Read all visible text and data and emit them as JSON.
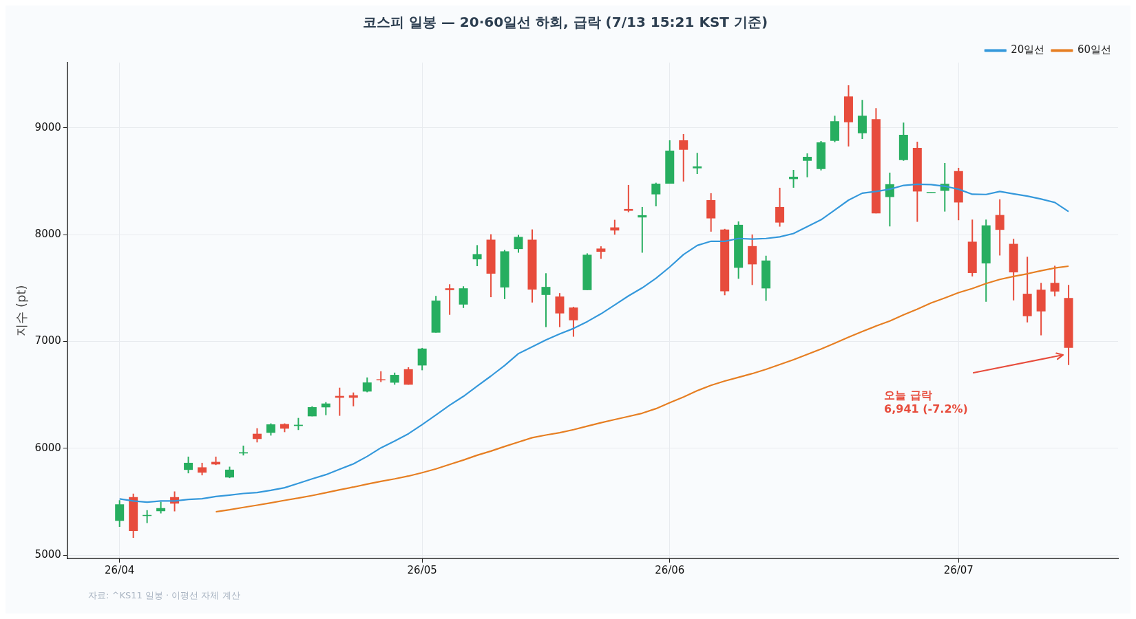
{
  "chart_data": {
    "type": "candlestick",
    "title": "코스피 일봉 — 20·60일선 하회, 급락 (7/13 15:21 KST 기준)",
    "ylabel": "지수 (pt)",
    "categories": [
      "26/04",
      null,
      null,
      null,
      null,
      null,
      null,
      null,
      null,
      null,
      null,
      null,
      null,
      null,
      null,
      null,
      null,
      null,
      null,
      null,
      null,
      null,
      "26/05",
      null,
      null,
      null,
      null,
      null,
      null,
      null,
      null,
      null,
      null,
      null,
      null,
      null,
      null,
      null,
      null,
      null,
      "26/06",
      null,
      null,
      null,
      null,
      null,
      null,
      null,
      null,
      null,
      null,
      null,
      null,
      null,
      null,
      null,
      null,
      null,
      null,
      null,
      null,
      "26/07",
      null,
      null,
      null,
      null,
      null,
      null,
      null,
      null
    ],
    "ohlc": [
      [
        5323,
        5516,
        5266,
        5476
      ],
      [
        5544,
        5576,
        5163,
        5227
      ],
      [
        5368,
        5422,
        5302,
        5377
      ],
      [
        5413,
        5501,
        5392,
        5441
      ],
      [
        5544,
        5598,
        5411,
        5484
      ],
      [
        5799,
        5923,
        5767,
        5865
      ],
      [
        5823,
        5865,
        5748,
        5773
      ],
      [
        5874,
        5923,
        5844,
        5850
      ],
      [
        5728,
        5829,
        5722,
        5801
      ],
      [
        5953,
        6026,
        5934,
        5964
      ],
      [
        6137,
        6189,
        6056,
        6088
      ],
      [
        6146,
        6234,
        6120,
        6225
      ],
      [
        6228,
        6234,
        6152,
        6185
      ],
      [
        6210,
        6285,
        6172,
        6221
      ],
      [
        6300,
        6394,
        6300,
        6386
      ],
      [
        6384,
        6433,
        6311,
        6420
      ],
      [
        6491,
        6568,
        6305,
        6474
      ],
      [
        6497,
        6523,
        6394,
        6474
      ],
      [
        6532,
        6664,
        6525,
        6617
      ],
      [
        6645,
        6722,
        6621,
        6639
      ],
      [
        6615,
        6709,
        6596,
        6688
      ],
      [
        6741,
        6759,
        6596,
        6596
      ],
      [
        6776,
        6940,
        6731,
        6934
      ],
      [
        7083,
        7427,
        7083,
        7383
      ],
      [
        7498,
        7536,
        7250,
        7481
      ],
      [
        7346,
        7517,
        7314,
        7498
      ],
      [
        7769,
        7902,
        7705,
        7818
      ],
      [
        7953,
        8004,
        7415,
        7635
      ],
      [
        7506,
        7857,
        7397,
        7844
      ],
      [
        7865,
        7998,
        7831,
        7979
      ],
      [
        7953,
        8049,
        7365,
        7487
      ],
      [
        7436,
        7639,
        7135,
        7511
      ],
      [
        7421,
        7453,
        7135,
        7263
      ],
      [
        7318,
        7325,
        7045,
        7199
      ],
      [
        7481,
        7825,
        7481,
        7812
      ],
      [
        7870,
        7891,
        7774,
        7840
      ],
      [
        8068,
        8139,
        8000,
        8039
      ],
      [
        8240,
        8465,
        8210,
        8223
      ],
      [
        8161,
        8259,
        7831,
        8182
      ],
      [
        8377,
        8486,
        8265,
        8477
      ],
      [
        8477,
        8882,
        8477,
        8786
      ],
      [
        8882,
        8940,
        8497,
        8794
      ],
      [
        8621,
        8766,
        8567,
        8638
      ],
      [
        8323,
        8388,
        8028,
        8152
      ],
      [
        8047,
        8054,
        7433,
        7471
      ],
      [
        7690,
        8124,
        7587,
        8092
      ],
      [
        7893,
        8002,
        7529,
        7722
      ],
      [
        7497,
        7803,
        7381,
        7758
      ],
      [
        8259,
        8439,
        8075,
        8113
      ],
      [
        8520,
        8606,
        8439,
        8542
      ],
      [
        8692,
        8760,
        8537,
        8728
      ],
      [
        8614,
        8876,
        8602,
        8863
      ],
      [
        8878,
        9113,
        8865,
        9062
      ],
      [
        9293,
        9397,
        8825,
        9051
      ],
      [
        8949,
        9261,
        8895,
        9113
      ],
      [
        9081,
        9184,
        8199,
        8199
      ],
      [
        8352,
        8581,
        8077,
        8472
      ],
      [
        8697,
        9049,
        8692,
        8934
      ],
      [
        8812,
        8870,
        8120,
        8404
      ],
      [
        8393,
        8395,
        8393,
        8395
      ],
      [
        8410,
        8671,
        8216,
        8476
      ],
      [
        8594,
        8626,
        8135,
        8301
      ],
      [
        7934,
        8141,
        7609,
        7641
      ],
      [
        7731,
        8141,
        7372,
        8087
      ],
      [
        8184,
        8331,
        7805,
        8045
      ],
      [
        7914,
        7961,
        7385,
        7647
      ],
      [
        7447,
        7793,
        7179,
        7237
      ],
      [
        7485,
        7549,
        7058,
        7282
      ],
      [
        7549,
        7709,
        7423,
        7468
      ],
      [
        7408,
        7530,
        6780,
        6941
      ]
    ],
    "colors": [
      "#27ae60",
      "#e74c3c",
      "#27ae60",
      "#27ae60",
      "#e74c3c",
      "#27ae60",
      "#e74c3c",
      "#e74c3c",
      "#27ae60",
      "#27ae60",
      "#e74c3c",
      "#27ae60",
      "#e74c3c",
      "#27ae60",
      "#27ae60",
      "#27ae60",
      "#e74c3c",
      "#e74c3c",
      "#27ae60",
      "#e74c3c",
      "#27ae60",
      "#e74c3c",
      "#27ae60",
      "#27ae60",
      "#e74c3c",
      "#27ae60",
      "#27ae60",
      "#e74c3c",
      "#27ae60",
      "#27ae60",
      "#e74c3c",
      "#27ae60",
      "#e74c3c",
      "#e74c3c",
      "#27ae60",
      "#e74c3c",
      "#e74c3c",
      "#e74c3c",
      "#27ae60",
      "#27ae60",
      "#27ae60",
      "#e74c3c",
      "#27ae60",
      "#e74c3c",
      "#e74c3c",
      "#27ae60",
      "#e74c3c",
      "#27ae60",
      "#e74c3c",
      "#27ae60",
      "#27ae60",
      "#27ae60",
      "#27ae60",
      "#e74c3c",
      "#27ae60",
      "#e74c3c",
      "#27ae60",
      "#27ae60",
      "#e74c3c",
      "#27ae60",
      "#27ae60",
      "#e74c3c",
      "#e74c3c",
      "#27ae60",
      "#e74c3c",
      "#e74c3c",
      "#e74c3c",
      "#e74c3c",
      "#e74c3c",
      "#e74c3c"
    ],
    "series": [
      {
        "name": "20일선",
        "type": "line",
        "color": "#3498db",
        "values": [
          5527,
          5508,
          5497,
          5508,
          5508,
          5523,
          5529,
          5550,
          5563,
          5578,
          5587,
          5608,
          5632,
          5673,
          5715,
          5754,
          5805,
          5855,
          5925,
          6005,
          6069,
          6137,
          6223,
          6312,
          6404,
          6487,
          6583,
          6677,
          6776,
          6887,
          6951,
          7015,
          7071,
          7122,
          7186,
          7259,
          7342,
          7427,
          7502,
          7592,
          7697,
          7814,
          7899,
          7938,
          7938,
          7964,
          7959,
          7964,
          7979,
          8011,
          8075,
          8139,
          8231,
          8323,
          8388,
          8404,
          8425,
          8461,
          8472,
          8468,
          8453,
          8425,
          8378,
          8376,
          8404,
          8382,
          8361,
          8333,
          8301,
          8216
        ]
      },
      {
        "name": "60일선",
        "type": "line",
        "color": "#e67e22",
        "values": [
          null,
          null,
          null,
          null,
          null,
          null,
          null,
          5407,
          5426,
          5448,
          5469,
          5491,
          5514,
          5535,
          5559,
          5585,
          5613,
          5638,
          5666,
          5692,
          5715,
          5741,
          5773,
          5808,
          5850,
          5891,
          5936,
          5975,
          6018,
          6059,
          6100,
          6125,
          6147,
          6175,
          6208,
          6240,
          6270,
          6299,
          6329,
          6372,
          6427,
          6481,
          6540,
          6590,
          6630,
          6665,
          6700,
          6740,
          6785,
          6830,
          6880,
          6930,
          6985,
          7040,
          7094,
          7145,
          7192,
          7250,
          7303,
          7361,
          7408,
          7457,
          7496,
          7543,
          7581,
          7609,
          7634,
          7662,
          7688,
          7705
        ]
      }
    ],
    "ylim": [
      4970,
      9610
    ],
    "yticks": [
      5000,
      6000,
      7000,
      8000,
      9000
    ],
    "grid": true,
    "legend": "top right",
    "marker": "none",
    "annotations": [
      "오늘 급락\n6,941 (-7.2%)",
      "자료: ^KS11 일봉 · 이평선 자체 계산"
    ]
  }
}
